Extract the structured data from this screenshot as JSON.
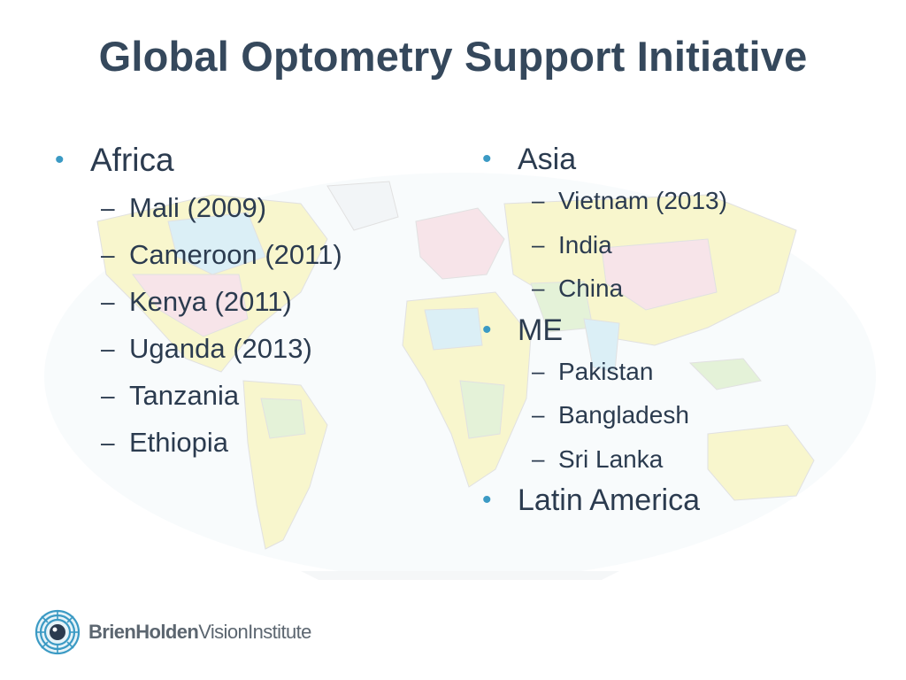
{
  "slide": {
    "title": "Global Optometry Support Initiative"
  },
  "left_column": {
    "region": "Africa",
    "items": [
      "Mali (2009)",
      "Cameroon (2011)",
      "Kenya (2011)",
      "Uganda (2013)",
      "Tanzania",
      "Ethiopia"
    ]
  },
  "right_column": {
    "asia": {
      "region": "Asia",
      "items": [
        "Vietnam (2013)",
        "India",
        "China"
      ]
    },
    "me": {
      "region": "ME",
      "items": [
        "Pakistan",
        "Bangladesh",
        "Sri Lanka"
      ]
    },
    "latin_america": {
      "region": "Latin America"
    }
  },
  "logo": {
    "brand_bold": "BrienHolden",
    "brand_regular": "VisionInstitute",
    "icon": "eye-icon"
  },
  "colors": {
    "title": "#35485c",
    "text": "#2b3b4f",
    "bullet": "#3b9ac4",
    "map_land_yellow": "#f3f0a6",
    "map_land_blue": "#bfe3ef",
    "map_land_green": "#cfe9b9",
    "map_land_pink": "#f2cfd8"
  },
  "background": {
    "image": "world-map-political"
  }
}
